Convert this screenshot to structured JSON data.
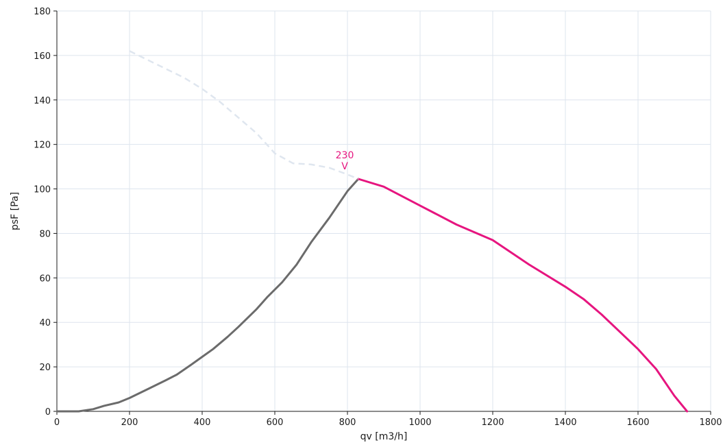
{
  "chart_data": {
    "type": "line",
    "xlabel": "qv [m3/h]",
    "ylabel": "psF [Pa]",
    "xlim": [
      0,
      1800
    ],
    "ylim": [
      0,
      180
    ],
    "xticks": [
      0,
      200,
      400,
      600,
      800,
      1000,
      1200,
      1400,
      1600,
      1800
    ],
    "yticks": [
      0,
      20,
      40,
      60,
      80,
      100,
      120,
      140,
      160,
      180
    ],
    "grid": true,
    "colors": {
      "grid": "#dde4ee",
      "axis": "#1a1a1a",
      "system": "#6b6b6b",
      "fan": "#e6157f",
      "unstable": "#dfe6ef"
    },
    "series": [
      {
        "key": "system",
        "style": "solid",
        "points": [
          [
            0,
            0
          ],
          [
            60,
            0
          ],
          [
            100,
            1
          ],
          [
            130,
            2.5
          ],
          [
            170,
            4
          ],
          [
            200,
            6
          ],
          [
            250,
            10
          ],
          [
            300,
            14
          ],
          [
            330,
            16.5
          ],
          [
            370,
            21
          ],
          [
            400,
            24.5
          ],
          [
            430,
            28
          ],
          [
            470,
            33.5
          ],
          [
            500,
            38
          ],
          [
            550,
            46
          ],
          [
            580,
            51.5
          ],
          [
            620,
            58
          ],
          [
            660,
            66
          ],
          [
            700,
            76
          ],
          [
            750,
            87
          ],
          [
            800,
            99
          ],
          [
            830,
            104.5
          ]
        ]
      },
      {
        "key": "fan",
        "style": "solid",
        "points": [
          [
            830,
            104.5
          ],
          [
            900,
            101
          ],
          [
            1000,
            92.5
          ],
          [
            1100,
            84
          ],
          [
            1200,
            77
          ],
          [
            1300,
            66
          ],
          [
            1400,
            56
          ],
          [
            1450,
            50.5
          ],
          [
            1500,
            43.5
          ],
          [
            1600,
            28
          ],
          [
            1650,
            19
          ],
          [
            1700,
            7
          ],
          [
            1735,
            0
          ]
        ]
      },
      {
        "key": "unstable",
        "style": "dashed",
        "points": [
          [
            200,
            162
          ],
          [
            250,
            158
          ],
          [
            300,
            154
          ],
          [
            350,
            150
          ],
          [
            400,
            145
          ],
          [
            450,
            139
          ],
          [
            500,
            132
          ],
          [
            550,
            125
          ],
          [
            600,
            116
          ],
          [
            650,
            111.5
          ],
          [
            700,
            111
          ],
          [
            750,
            109.5
          ],
          [
            800,
            106.5
          ],
          [
            830,
            104.5
          ]
        ]
      }
    ],
    "annotations": [
      {
        "key": "voltage",
        "lines": [
          "230",
          "V"
        ],
        "x": 800,
        "y": 104.5
      }
    ]
  }
}
